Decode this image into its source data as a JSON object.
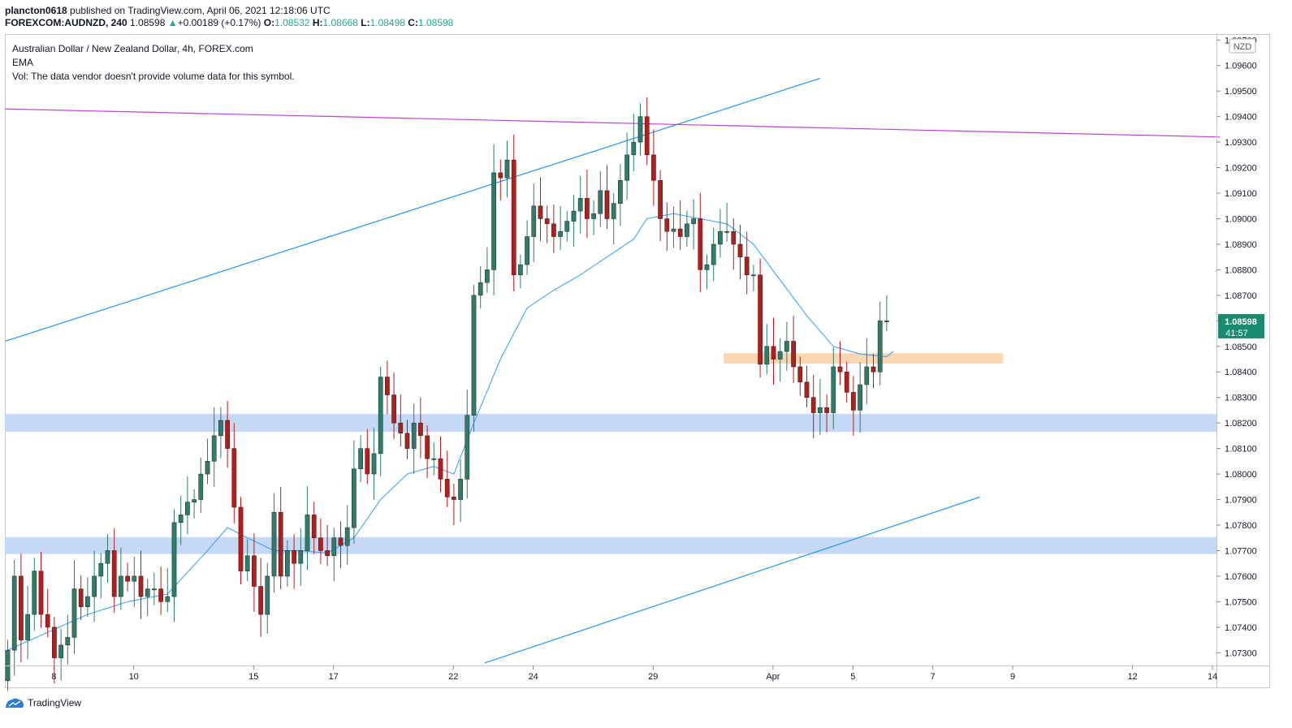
{
  "header": {
    "line1_user": "plancton0618",
    "line1_rest": "published on TradingView.com, April 06, 2021 12:18:06 UTC",
    "symbol": "FOREXCOM:AUDNZD, 240",
    "price": "1.08598",
    "arrow": "▲",
    "change": "+0.00189 (+0.17%)",
    "o_label": "O:",
    "o": "1.08532",
    "h_label": "H:",
    "h": "1.08668",
    "l_label": "L:",
    "l": "1.08498",
    "c_label": "C:",
    "c": "1.08598"
  },
  "legend": {
    "title": "Australian Dollar / New Zealand Dollar, 4h, FOREX.com",
    "indicator": "EMA",
    "volume_note": "Vol: The data vendor doesn't provide volume data for this symbol."
  },
  "footer": {
    "brand": "TradingView",
    "logo_icon": "tradingview-logo-icon"
  },
  "colors": {
    "up": "#26a69a",
    "up_body": "#2e7d6b",
    "down": "#b71c1c",
    "wick": "#444444",
    "ema": "#42a5f5",
    "trend": "#2196f3",
    "resistance": "#c13edb",
    "zone_blue": "#c5d9f6",
    "zone_orange": "#fad7b0",
    "badge": "#1b8b6f"
  },
  "chart_data": {
    "type": "candlestick",
    "currency_badge": "NZD",
    "last_price_badge": "1.08598",
    "countdown": "41:57",
    "y_axis": {
      "ylim": [
        1.0725,
        1.0972
      ],
      "ticks": [
        "1.07300",
        "1.07400",
        "1.07500",
        "1.07600",
        "1.07700",
        "1.07800",
        "1.07900",
        "1.08000",
        "1.08100",
        "1.08200",
        "1.08300",
        "1.08400",
        "1.08500",
        "1.08600",
        "1.08700",
        "1.08800",
        "1.08900",
        "1.09000",
        "1.09100",
        "1.09200",
        "1.09300",
        "1.09400",
        "1.09500",
        "1.09600",
        "1.09700"
      ]
    },
    "x_axis": {
      "ticks": [
        {
          "label": "8",
          "i": 4
        },
        {
          "label": "10",
          "i": 16
        },
        {
          "label": "15",
          "i": 34
        },
        {
          "label": "17",
          "i": 46
        },
        {
          "label": "22",
          "i": 64
        },
        {
          "label": "24",
          "i": 76
        },
        {
          "label": "29",
          "i": 94
        },
        {
          "label": "Apr",
          "i": 112
        },
        {
          "label": "5",
          "i": 124
        },
        {
          "label": "7",
          "i": 136
        },
        {
          "label": "9",
          "i": 148
        },
        {
          "label": "12",
          "i": 166
        },
        {
          "label": "14",
          "i": 178
        }
      ],
      "bar_count_visible": 183
    },
    "close_sequence": [
      1.0731,
      1.076,
      1.0735,
      1.0745,
      1.0762,
      1.0745,
      1.074,
      1.0728,
      1.0733,
      1.0736,
      1.0755,
      1.0748,
      1.0752,
      1.076,
      1.0765,
      1.077,
      1.0752,
      1.076,
      1.0758,
      1.076,
      1.0752,
      1.0755,
      1.0755,
      1.075,
      1.0752,
      1.0781,
      1.0784,
      1.0789,
      1.079,
      1.08,
      1.0805,
      1.0815,
      1.0821,
      1.081,
      1.0787,
      1.0762,
      1.0768,
      1.0756,
      1.0745,
      1.076,
      1.0785,
      1.076,
      1.077,
      1.0765,
      1.077,
      1.0784,
      1.0775,
      1.077,
      1.0768,
      1.0775,
      1.0772,
      1.0779,
      1.0802,
      1.081,
      1.08,
      1.0808,
      1.0838,
      1.0831,
      1.082,
      1.0816,
      1.081,
      1.082,
      1.0815,
      1.0806,
      1.0806,
      1.0798,
      1.0791,
      1.079,
      1.0798,
      1.0823,
      1.087,
      1.0875,
      1.088,
      1.0918,
      1.0916,
      1.0923,
      1.0878,
      1.0882,
      1.0893,
      1.0905,
      1.09,
      1.0898,
      1.0893,
      1.0895,
      1.0899,
      1.0903,
      1.0908,
      1.09,
      1.0902,
      1.0911,
      1.09,
      1.0906,
      1.0915,
      1.0925,
      1.093,
      1.094,
      1.0925,
      1.0915,
      1.09,
      1.0895,
      1.0896,
      1.0893,
      1.0898,
      1.09,
      1.088,
      1.0882,
      1.089,
      1.0895,
      1.0895,
      1.089,
      1.0885,
      1.0878,
      1.0878,
      1.0843,
      1.085,
      1.0845,
      1.0848,
      1.0852,
      1.0842,
      1.0836,
      1.083,
      1.0824,
      1.0826,
      1.0824,
      1.0842,
      1.084,
      1.0832,
      1.0825,
      1.0835,
      1.0842,
      1.084,
      1.086,
      1.086
    ],
    "ema_points": [
      [
        0,
        1.0731
      ],
      [
        6,
        1.0738
      ],
      [
        12,
        1.0745
      ],
      [
        18,
        1.075
      ],
      [
        24,
        1.0753
      ],
      [
        30,
        1.077
      ],
      [
        33,
        1.0779
      ],
      [
        36,
        1.0775
      ],
      [
        40,
        1.077
      ],
      [
        44,
        1.077
      ],
      [
        48,
        1.0769
      ],
      [
        52,
        1.0775
      ],
      [
        56,
        1.079
      ],
      [
        60,
        1.08
      ],
      [
        64,
        1.0803
      ],
      [
        67,
        1.08
      ],
      [
        70,
        1.082
      ],
      [
        74,
        1.0845
      ],
      [
        78,
        1.0865
      ],
      [
        82,
        1.0872
      ],
      [
        86,
        1.0878
      ],
      [
        90,
        1.0885
      ],
      [
        94,
        1.0892
      ],
      [
        96,
        1.09
      ],
      [
        100,
        1.0902
      ],
      [
        104,
        1.09
      ],
      [
        108,
        1.0898
      ],
      [
        112,
        1.089
      ],
      [
        116,
        1.0876
      ],
      [
        120,
        1.0862
      ],
      [
        124,
        1.085
      ],
      [
        128,
        1.0847
      ],
      [
        132,
        1.0846
      ],
      [
        133,
        1.0848
      ]
    ],
    "lines": [
      {
        "name": "resistance-line",
        "color": "#c13edb",
        "p1": [
          0,
          1.0943
        ],
        "p2": [
          182,
          1.0932
        ]
      },
      {
        "name": "upper-channel-line",
        "color": "#2196f3",
        "p1": [
          0,
          1.0852
        ],
        "p2": [
          122,
          1.0955
        ]
      },
      {
        "name": "lower-channel-line",
        "color": "#2196f3",
        "p1": [
          72,
          1.0726
        ],
        "p2": [
          146,
          1.0791
        ]
      }
    ],
    "zones": [
      {
        "name": "support-zone-upper",
        "color": "#c5d9f6",
        "from_i": 0,
        "to_i": 182,
        "y1": 1.08235,
        "y2": 1.08165
      },
      {
        "name": "support-zone-lower",
        "color": "#c5d9f6",
        "from_i": 0,
        "to_i": 182,
        "y1": 1.07753,
        "y2": 1.07687
      },
      {
        "name": "demand-zone",
        "color": "#fad7b0",
        "from_i": 108,
        "to_i": 149,
        "y1": 1.08473,
        "y2": 1.08433
      }
    ]
  }
}
